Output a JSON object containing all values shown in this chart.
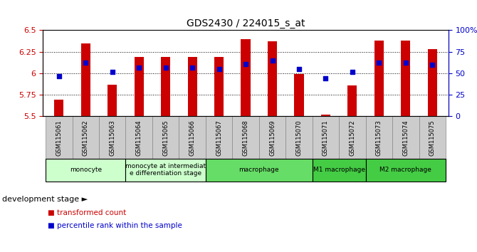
{
  "title": "GDS2430 / 224015_s_at",
  "samples": [
    "GSM115061",
    "GSM115062",
    "GSM115063",
    "GSM115064",
    "GSM115065",
    "GSM115066",
    "GSM115067",
    "GSM115068",
    "GSM115069",
    "GSM115070",
    "GSM115071",
    "GSM115072",
    "GSM115073",
    "GSM115074",
    "GSM115075"
  ],
  "transformed_count": [
    5.69,
    6.35,
    5.87,
    6.19,
    6.19,
    6.19,
    6.19,
    6.4,
    6.37,
    5.99,
    5.52,
    5.86,
    6.38,
    6.38,
    6.28
  ],
  "percentile_rank": [
    47,
    62,
    52,
    57,
    57,
    57,
    55,
    61,
    65,
    55,
    44,
    52,
    62,
    62,
    60
  ],
  "bar_color": "#cc0000",
  "dot_color": "#0000cc",
  "ylim_left": [
    5.5,
    6.5
  ],
  "ylim_right": [
    0,
    100
  ],
  "yticks_left": [
    5.5,
    5.75,
    6.0,
    6.25,
    6.5
  ],
  "ytick_labels_left": [
    "5.5",
    "5.75",
    "6",
    "6.25",
    "6.5"
  ],
  "yticks_right": [
    0,
    25,
    50,
    75,
    100
  ],
  "ytick_labels_right": [
    "0",
    "25",
    "50",
    "75",
    "100%"
  ],
  "group_defs": [
    {
      "label": "monocyte",
      "indices": [
        0,
        1,
        2
      ],
      "color": "#ccffcc"
    },
    {
      "label": "monocyte at intermediat\ne differentiation stage",
      "indices": [
        3,
        4,
        5
      ],
      "color": "#ccffcc"
    },
    {
      "label": "macrophage",
      "indices": [
        6,
        7,
        8,
        9
      ],
      "color": "#66dd66"
    },
    {
      "label": "M1 macrophage",
      "indices": [
        10,
        11
      ],
      "color": "#44cc44"
    },
    {
      "label": "M2 macrophage",
      "indices": [
        12,
        13,
        14
      ],
      "color": "#44cc44"
    }
  ],
  "xlabel": "development stage",
  "legend_bar": "transformed count",
  "legend_dot": "percentile rank within the sample",
  "bar_width": 0.35,
  "grid_style": "dotted",
  "grid_color": "#000000",
  "tick_label_color_left": "#cc0000",
  "tick_label_color_right": "#0000cc",
  "background_color": "#ffffff",
  "plot_bg_color": "#ffffff",
  "tick_bg_color": "#cccccc",
  "tick_box_edge": "#888888"
}
